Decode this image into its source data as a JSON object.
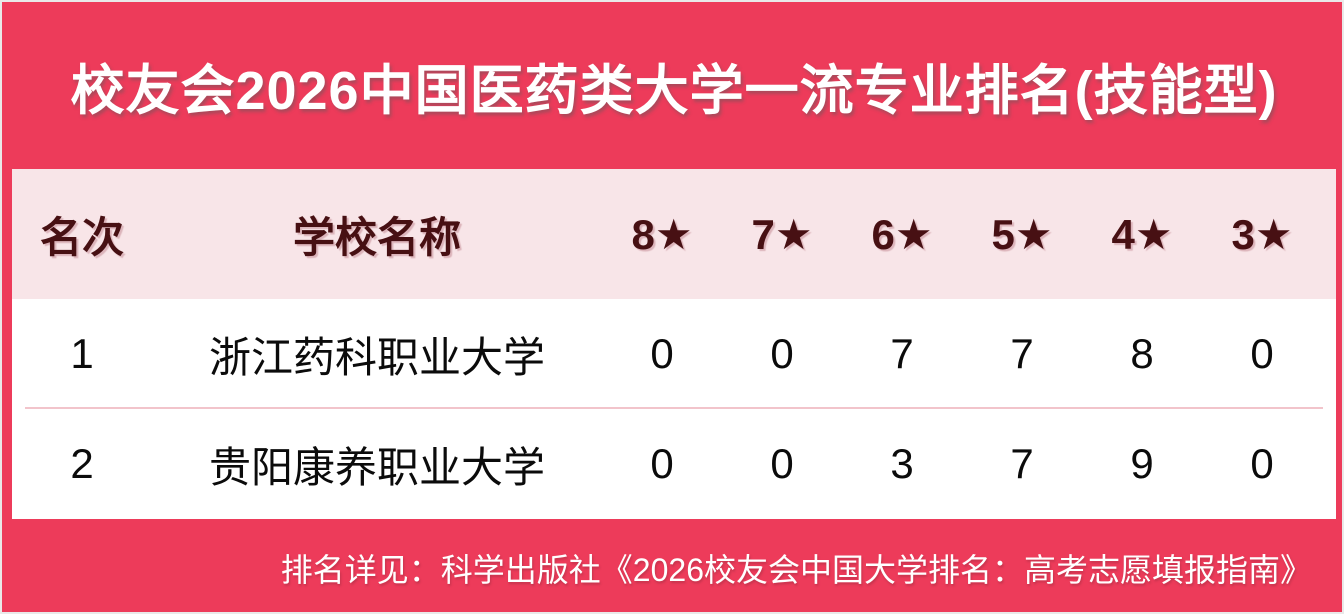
{
  "colors": {
    "background": "#ED3B5A",
    "title_text": "#FFFFFF",
    "table_header_bg": "#F8E5E8",
    "table_header_text": "#471013",
    "row_bg": "#FFFFFF",
    "row_text": "#0B0B0B",
    "row_divider": "#F2C4CB",
    "footer_text": "#FFFFFF"
  },
  "chart_data": {
    "type": "table",
    "title": "校友会2026中国医药类大学一流专业排名(技能型)",
    "columns": [
      "名次",
      "学校名称",
      "8★",
      "7★",
      "6★",
      "5★",
      "4★",
      "3★"
    ],
    "rows": [
      [
        "1",
        "浙江药科职业大学",
        "0",
        "0",
        "7",
        "7",
        "8",
        "0"
      ],
      [
        "2",
        "贵阳康养职业大学",
        "0",
        "0",
        "3",
        "7",
        "9",
        "0"
      ]
    ],
    "note": "排名详见：科学出版社《2026校友会中国大学排名：高考志愿填报指南》",
    "layout": {
      "legend": "none",
      "grid": "horizontal-row-dividers",
      "header_style": "pink-band-dark-maroon-text"
    }
  }
}
